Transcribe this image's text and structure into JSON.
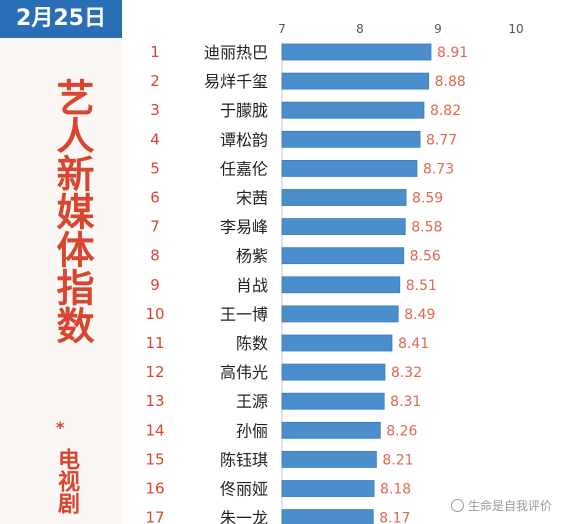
{
  "sidebar": {
    "date": "2月25日",
    "title": "艺人新媒体指数",
    "star": "*",
    "subtitle": "电视剧"
  },
  "watermark": {
    "icon": "at-icon",
    "text": "生命是自我评价"
  },
  "colors": {
    "bar": "#4a8fcc",
    "bar_edge": "#3a7ab8",
    "rank": "#d9452e",
    "value": "#e0684f",
    "name": "#222222",
    "date_tab": "#2a6fb5",
    "axis_text": "#555555"
  },
  "chart_data": {
    "type": "bar",
    "orientation": "horizontal",
    "title": "艺人新媒体指数",
    "xlim": [
      7,
      10
    ],
    "ticks": [
      "7",
      "8",
      "9",
      "10"
    ],
    "grid": false,
    "rows": [
      {
        "rank": "1",
        "name": "迪丽热巴",
        "value": 8.91,
        "label": "8.91"
      },
      {
        "rank": "2",
        "name": "易烊千玺",
        "value": 8.88,
        "label": "8.88"
      },
      {
        "rank": "3",
        "name": "于朦胧",
        "value": 8.82,
        "label": "8.82"
      },
      {
        "rank": "4",
        "name": "谭松韵",
        "value": 8.77,
        "label": "8.77"
      },
      {
        "rank": "5",
        "name": "任嘉伦",
        "value": 8.73,
        "label": "8.73"
      },
      {
        "rank": "6",
        "name": "宋茜",
        "value": 8.59,
        "label": "8.59"
      },
      {
        "rank": "7",
        "name": "李易峰",
        "value": 8.58,
        "label": "8.58"
      },
      {
        "rank": "8",
        "name": "杨紫",
        "value": 8.56,
        "label": "8.56"
      },
      {
        "rank": "9",
        "name": "肖战",
        "value": 8.51,
        "label": "8.51"
      },
      {
        "rank": "10",
        "name": "王一博",
        "value": 8.49,
        "label": "8.49"
      },
      {
        "rank": "11",
        "name": "陈数",
        "value": 8.41,
        "label": "8.41"
      },
      {
        "rank": "12",
        "name": "高伟光",
        "value": 8.32,
        "label": "8.32"
      },
      {
        "rank": "13",
        "name": "王源",
        "value": 8.31,
        "label": "8.31"
      },
      {
        "rank": "14",
        "name": "孙俪",
        "value": 8.26,
        "label": "8.26"
      },
      {
        "rank": "15",
        "name": "陈钰琪",
        "value": 8.21,
        "label": "8.21"
      },
      {
        "rank": "16",
        "name": "佟丽娅",
        "value": 8.18,
        "label": "8.18"
      },
      {
        "rank": "17",
        "name": "朱一龙",
        "value": 8.17,
        "label": "8.17"
      }
    ]
  }
}
